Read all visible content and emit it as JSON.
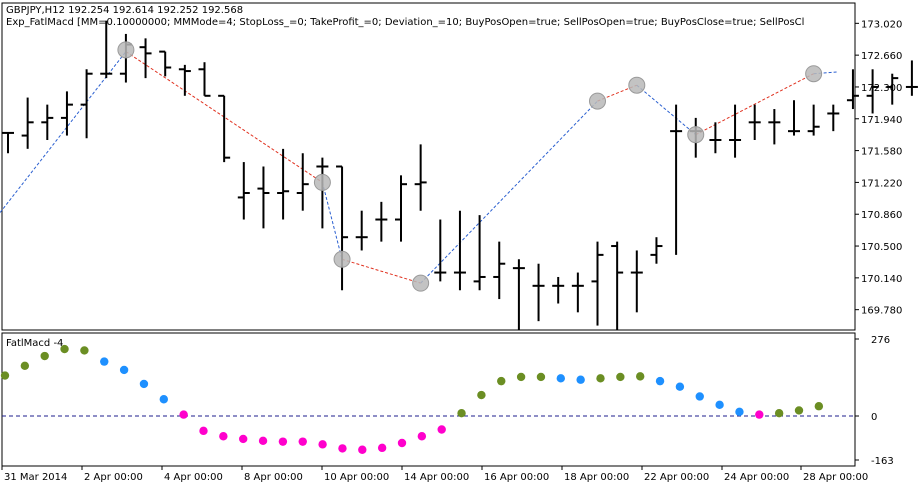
{
  "header": {
    "line1": "GBPJPY,H12  192.254 192.614 192.252 192.568",
    "line2": "Exp_FatlMacd [MM=0.10000000; MMMode=4; StopLoss_=0; TakeProfit_=0; Deviation_=10; BuyPosOpen=true; SellPosOpen=true; BuyPosClose=true; SellPosCl"
  },
  "indicator_label": "FatlMacd -4",
  "colors": {
    "bar": "#000000",
    "dashed_sell": "#e0301e",
    "dashed_buy": "#2a5fd0",
    "marker": "#b8b8b8",
    "green_dot": "#6b8e23",
    "blue_dot": "#1e90ff",
    "magenta_dot": "#ff00cc",
    "zero_line": "#1c1c8c"
  },
  "chart_data": [
    {
      "type": "ohlc",
      "series_name": "GBPJPY,H12",
      "yticks": [
        "173.020",
        "172.660",
        "172.300",
        "171.940",
        "171.580",
        "171.220",
        "170.860",
        "170.500",
        "170.140",
        "169.780"
      ],
      "ylim": [
        169.55,
        173.25
      ],
      "xticks": [
        "31 Mar 2014",
        "2 Apr 00:00",
        "4 Apr 00:00",
        "8 Apr 00:00",
        "10 Apr 00:00",
        "14 Apr 00:00",
        "16 Apr 00:00",
        "18 Apr 00:00",
        "22 Apr 00:00",
        "24 Apr 00:00",
        "28 Apr 00:00"
      ],
      "bars": [
        {
          "o": 171.78,
          "h": 171.78,
          "l": 171.55,
          "c": 171.78
        },
        {
          "o": 171.75,
          "h": 172.18,
          "l": 171.6,
          "c": 171.9
        },
        {
          "o": 171.9,
          "h": 172.1,
          "l": 171.7,
          "c": 171.95
        },
        {
          "o": 171.95,
          "h": 172.25,
          "l": 171.75,
          "c": 172.1
        },
        {
          "o": 172.1,
          "h": 172.5,
          "l": 171.72,
          "c": 172.45
        },
        {
          "o": 172.45,
          "h": 173.05,
          "l": 172.4,
          "c": 172.45
        },
        {
          "o": 172.45,
          "h": 172.9,
          "l": 172.35,
          "c": 172.78
        },
        {
          "o": 172.75,
          "h": 172.85,
          "l": 172.4,
          "c": 172.68
        },
        {
          "o": 172.7,
          "h": 172.7,
          "l": 172.42,
          "c": 172.52
        },
        {
          "o": 172.5,
          "h": 172.55,
          "l": 172.2,
          "c": 172.48
        },
        {
          "o": 172.5,
          "h": 172.58,
          "l": 172.2,
          "c": 172.2
        },
        {
          "o": 172.2,
          "h": 172.2,
          "l": 171.45,
          "c": 171.5
        },
        {
          "o": 171.05,
          "h": 171.45,
          "l": 170.8,
          "c": 171.1
        },
        {
          "o": 171.15,
          "h": 171.4,
          "l": 170.7,
          "c": 171.1
        },
        {
          "o": 171.1,
          "h": 171.6,
          "l": 170.8,
          "c": 171.12
        },
        {
          "o": 171.1,
          "h": 171.55,
          "l": 170.9,
          "c": 171.2
        },
        {
          "o": 171.4,
          "h": 171.5,
          "l": 170.7,
          "c": 171.4
        },
        {
          "o": 171.4,
          "h": 171.4,
          "l": 170.0,
          "c": 170.6
        },
        {
          "o": 170.6,
          "h": 170.9,
          "l": 170.45,
          "c": 170.6
        },
        {
          "o": 170.8,
          "h": 171.0,
          "l": 170.55,
          "c": 170.8
        },
        {
          "o": 170.8,
          "h": 171.3,
          "l": 170.55,
          "c": 171.2
        },
        {
          "o": 171.2,
          "h": 171.65,
          "l": 170.9,
          "c": 171.22
        },
        {
          "o": 170.2,
          "h": 170.8,
          "l": 170.1,
          "c": 170.2
        },
        {
          "o": 170.2,
          "h": 170.9,
          "l": 170.0,
          "c": 170.2
        },
        {
          "o": 170.1,
          "h": 170.85,
          "l": 170.0,
          "c": 170.15
        },
        {
          "o": 170.15,
          "h": 170.55,
          "l": 169.9,
          "c": 170.3
        },
        {
          "o": 170.25,
          "h": 170.35,
          "l": 169.55,
          "c": 170.25
        },
        {
          "o": 170.05,
          "h": 170.3,
          "l": 169.65,
          "c": 170.05
        },
        {
          "o": 170.05,
          "h": 170.15,
          "l": 169.85,
          "c": 170.05
        },
        {
          "o": 170.05,
          "h": 170.2,
          "l": 169.75,
          "c": 170.05
        },
        {
          "o": 170.1,
          "h": 170.55,
          "l": 169.6,
          "c": 170.4
        },
        {
          "o": 170.5,
          "h": 170.55,
          "l": 169.55,
          "c": 170.2
        },
        {
          "o": 170.2,
          "h": 170.45,
          "l": 169.75,
          "c": 170.2
        },
        {
          "o": 170.4,
          "h": 170.6,
          "l": 170.3,
          "c": 170.5
        },
        {
          "o": 171.8,
          "h": 172.1,
          "l": 170.4,
          "c": 171.8
        },
        {
          "o": 171.8,
          "h": 171.95,
          "l": 171.5,
          "c": 171.8
        },
        {
          "o": 171.7,
          "h": 171.9,
          "l": 171.55,
          "c": 171.7
        },
        {
          "o": 171.7,
          "h": 172.1,
          "l": 171.5,
          "c": 171.7
        },
        {
          "o": 171.9,
          "h": 172.1,
          "l": 171.7,
          "c": 171.9
        },
        {
          "o": 171.9,
          "h": 172.05,
          "l": 171.65,
          "c": 171.9
        },
        {
          "o": 171.8,
          "h": 172.15,
          "l": 171.75,
          "c": 171.8
        },
        {
          "o": 171.8,
          "h": 172.1,
          "l": 171.75,
          "c": 171.85
        },
        {
          "o": 172.0,
          "h": 172.1,
          "l": 171.8,
          "c": 172.0
        },
        {
          "o": 172.15,
          "h": 172.5,
          "l": 172.05,
          "c": 172.2
        },
        {
          "o": 172.2,
          "h": 172.5,
          "l": 172.0,
          "c": 172.3
        },
        {
          "o": 172.3,
          "h": 172.45,
          "l": 172.1,
          "c": 172.4
        },
        {
          "o": 172.3,
          "h": 172.6,
          "l": 172.2,
          "c": 172.3
        },
        {
          "o": 172.35,
          "h": 172.7,
          "l": 172.0,
          "c": 172.4
        },
        {
          "o": 172.4,
          "h": 172.75,
          "l": 172.2,
          "c": 172.6
        },
        {
          "o": 172.6,
          "h": 172.85,
          "l": 171.7,
          "c": 172.6
        },
        {
          "o": 171.7,
          "h": 172.0,
          "l": 171.7,
          "c": 171.75
        },
        {
          "o": 171.75,
          "h": 172.1,
          "l": 171.5,
          "c": 171.95
        },
        {
          "o": 171.9,
          "h": 172.05,
          "l": 171.55,
          "c": 171.9
        },
        {
          "o": 171.85,
          "h": 172.0,
          "l": 171.7,
          "c": 171.85
        },
        {
          "o": 171.8,
          "h": 172.25,
          "l": 171.55,
          "c": 171.8
        },
        {
          "o": 171.85,
          "h": 171.9,
          "l": 171.5,
          "c": 171.8
        },
        {
          "o": 171.8,
          "h": 171.85,
          "l": 171.45,
          "c": 171.8
        },
        {
          "o": 171.6,
          "h": 171.8,
          "l": 171.3,
          "c": 171.6
        },
        {
          "o": 171.8,
          "h": 172.55,
          "l": 171.2,
          "c": 172.5
        },
        {
          "o": 172.5,
          "h": 172.9,
          "l": 172.3,
          "c": 172.5
        },
        {
          "o": 172.3,
          "h": 172.55,
          "l": 171.95,
          "c": 172.25
        },
        {
          "o": 172.55,
          "h": 172.95,
          "l": 172.2,
          "c": 172.55
        }
      ],
      "signals": [
        {
          "bar": 6,
          "price": 172.72,
          "kind": "sell"
        },
        {
          "bar": 16,
          "price": 171.22,
          "kind": "buy"
        },
        {
          "bar": 17,
          "price": 170.35,
          "kind": "sell"
        },
        {
          "bar": 21,
          "price": 170.08,
          "kind": "buy"
        },
        {
          "bar": 30,
          "price": 172.14,
          "kind": "sell"
        },
        {
          "bar": 32,
          "price": 172.32,
          "kind": "buy"
        },
        {
          "bar": 35,
          "price": 171.76,
          "kind": "sell"
        },
        {
          "bar": 41,
          "price": 172.45,
          "kind": "buy"
        }
      ],
      "trade_lines": [
        {
          "from": [
            -0.4,
            170.88
          ],
          "to": [
            6,
            172.7
          ],
          "kind": "buy"
        },
        {
          "from": [
            6,
            172.7
          ],
          "to": [
            16,
            171.22
          ],
          "kind": "sell"
        },
        {
          "from": [
            16,
            171.22
          ],
          "to": [
            17,
            170.35
          ],
          "kind": "buy"
        },
        {
          "from": [
            17,
            170.35
          ],
          "to": [
            21,
            170.08
          ],
          "kind": "sell"
        },
        {
          "from": [
            21,
            170.08
          ],
          "to": [
            30,
            172.14
          ],
          "kind": "buy"
        },
        {
          "from": [
            30,
            172.14
          ],
          "to": [
            32,
            172.32
          ],
          "kind": "sell"
        },
        {
          "from": [
            32,
            172.32
          ],
          "to": [
            35,
            171.76
          ],
          "kind": "buy"
        },
        {
          "from": [
            35,
            171.76
          ],
          "to": [
            41,
            172.45
          ],
          "kind": "sell"
        },
        {
          "from": [
            41,
            172.45
          ],
          "to": [
            42.2,
            172.47
          ],
          "kind": "buy"
        }
      ]
    },
    {
      "type": "scatter",
      "series_name": "FatlMacd -4",
      "yticks": [
        "276",
        "0",
        "-163"
      ],
      "ylim": [
        -163,
        276
      ],
      "points": [
        {
          "x": 0,
          "y": 145,
          "c": "green"
        },
        {
          "x": 1,
          "y": 180,
          "c": "green"
        },
        {
          "x": 2,
          "y": 215,
          "c": "green"
        },
        {
          "x": 3,
          "y": 240,
          "c": "green"
        },
        {
          "x": 4,
          "y": 235,
          "c": "green"
        },
        {
          "x": 5,
          "y": 195,
          "c": "blue"
        },
        {
          "x": 6,
          "y": 165,
          "c": "blue"
        },
        {
          "x": 7,
          "y": 115,
          "c": "blue"
        },
        {
          "x": 8,
          "y": 60,
          "c": "blue"
        },
        {
          "x": 9,
          "y": 5,
          "c": "magenta"
        },
        {
          "x": 10,
          "y": -55,
          "c": "magenta"
        },
        {
          "x": 11,
          "y": -75,
          "c": "magenta"
        },
        {
          "x": 12,
          "y": -85,
          "c": "magenta"
        },
        {
          "x": 13,
          "y": -92,
          "c": "magenta"
        },
        {
          "x": 14,
          "y": -95,
          "c": "magenta"
        },
        {
          "x": 15,
          "y": -95,
          "c": "magenta"
        },
        {
          "x": 16,
          "y": -105,
          "c": "magenta"
        },
        {
          "x": 17,
          "y": -120,
          "c": "magenta"
        },
        {
          "x": 18,
          "y": -125,
          "c": "magenta"
        },
        {
          "x": 19,
          "y": -118,
          "c": "magenta"
        },
        {
          "x": 20,
          "y": -100,
          "c": "magenta"
        },
        {
          "x": 21,
          "y": -75,
          "c": "magenta"
        },
        {
          "x": 22,
          "y": -50,
          "c": "magenta"
        },
        {
          "x": 23,
          "y": 10,
          "c": "green"
        },
        {
          "x": 24,
          "y": 75,
          "c": "green"
        },
        {
          "x": 25,
          "y": 125,
          "c": "green"
        },
        {
          "x": 26,
          "y": 140,
          "c": "green"
        },
        {
          "x": 27,
          "y": 140,
          "c": "green"
        },
        {
          "x": 28,
          "y": 135,
          "c": "blue"
        },
        {
          "x": 29,
          "y": 130,
          "c": "blue"
        },
        {
          "x": 30,
          "y": 135,
          "c": "green"
        },
        {
          "x": 31,
          "y": 140,
          "c": "green"
        },
        {
          "x": 32,
          "y": 142,
          "c": "green"
        },
        {
          "x": 33,
          "y": 125,
          "c": "blue"
        },
        {
          "x": 34,
          "y": 105,
          "c": "blue"
        },
        {
          "x": 35,
          "y": 70,
          "c": "blue"
        },
        {
          "x": 36,
          "y": 40,
          "c": "blue"
        },
        {
          "x": 37,
          "y": 15,
          "c": "blue"
        },
        {
          "x": 38,
          "y": 5,
          "c": "magenta"
        },
        {
          "x": 39,
          "y": 10,
          "c": "green"
        },
        {
          "x": 40,
          "y": 20,
          "c": "green"
        },
        {
          "x": 41,
          "y": 35,
          "c": "green"
        }
      ]
    }
  ]
}
